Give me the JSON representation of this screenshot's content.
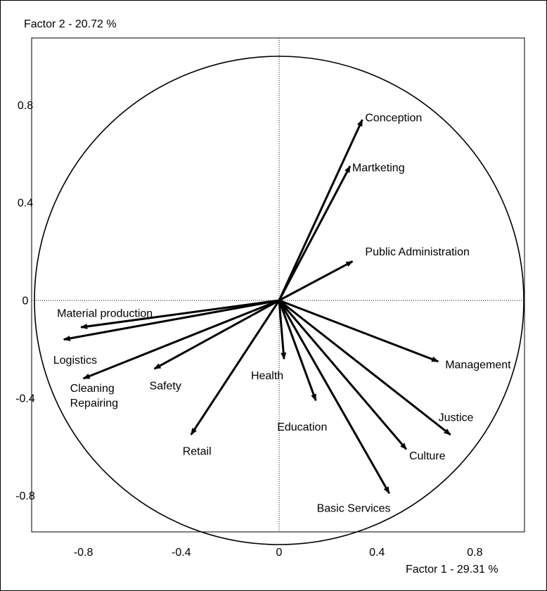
{
  "chart_data": {
    "type": "scatter",
    "subtype": "correlation-circle",
    "title": "",
    "xlabel": "Factor 1  -  29.31 %",
    "ylabel": "Factor 2  -  20.72 %",
    "xlim": [
      -1.0,
      1.0
    ],
    "ylim": [
      -0.95,
      1.0
    ],
    "xticks": [
      {
        "value": -0.8,
        "label": "-0.8"
      },
      {
        "value": -0.4,
        "label": "-0.4"
      },
      {
        "value": 0,
        "label": "0"
      },
      {
        "value": 0.4,
        "label": "0.4"
      },
      {
        "value": 0.8,
        "label": "0.8"
      }
    ],
    "yticks": [
      {
        "value": 0.8,
        "label": "0.8"
      },
      {
        "value": 0.4,
        "label": "0.4"
      },
      {
        "value": 0,
        "label": "0"
      },
      {
        "value": -0.4,
        "label": "-0.4"
      },
      {
        "value": -0.8,
        "label": "-0.8"
      }
    ],
    "grid": false,
    "reference_lines": "dotted lines at x = 0 and y = 0",
    "unit_circle": true,
    "vectors": [
      {
        "name": "Conception",
        "x": 0.34,
        "y": 0.74
      },
      {
        "name": "Martketing",
        "x": 0.29,
        "y": 0.55
      },
      {
        "name": "Public Administration",
        "x": 0.3,
        "y": 0.16
      },
      {
        "name": "Management",
        "x": 0.65,
        "y": -0.25
      },
      {
        "name": "Justice",
        "x": 0.7,
        "y": -0.55
      },
      {
        "name": "Culture",
        "x": 0.52,
        "y": -0.61
      },
      {
        "name": "Basic Services",
        "x": 0.45,
        "y": -0.79
      },
      {
        "name": "Education",
        "x": 0.15,
        "y": -0.41
      },
      {
        "name": "Health",
        "x": 0.02,
        "y": -0.24
      },
      {
        "name": "Retail",
        "x": -0.36,
        "y": -0.55
      },
      {
        "name": "Safety",
        "x": -0.51,
        "y": -0.28
      },
      {
        "name": "Cleaning Repairing",
        "label_lines": [
          "Cleaning",
          "Repairing"
        ],
        "x": -0.8,
        "y": -0.32
      },
      {
        "name": "Logistics",
        "x": -0.88,
        "y": -0.16
      },
      {
        "name": "Material production",
        "x": -0.81,
        "y": -0.11
      }
    ]
  }
}
